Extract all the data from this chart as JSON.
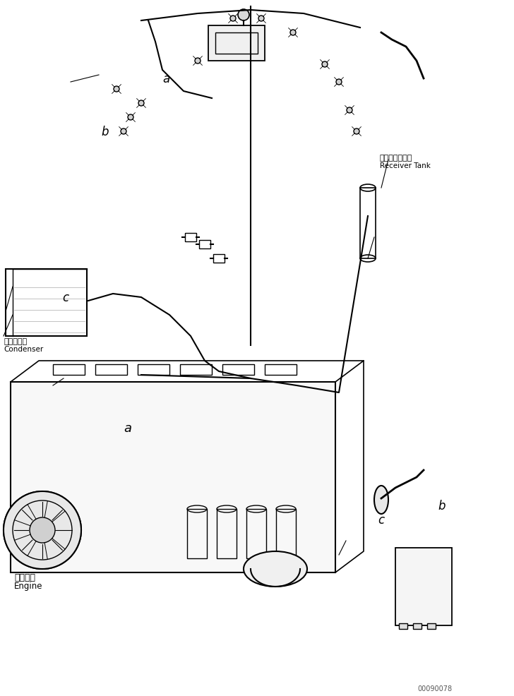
{
  "figure_width": 7.28,
  "figure_height": 9.87,
  "dpi": 100,
  "bg_color": "#ffffff",
  "title_text": "",
  "watermark": "00090078",
  "labels": {
    "condenser_jp": "コンデンサ",
    "condenser_en": "Condenser",
    "receiver_jp": "レシーバタンク",
    "receiver_en": "Receiver Tank",
    "engine_jp": "エンジン",
    "engine_en": "Engine"
  },
  "line_color": "#000000",
  "text_color": "#000000"
}
